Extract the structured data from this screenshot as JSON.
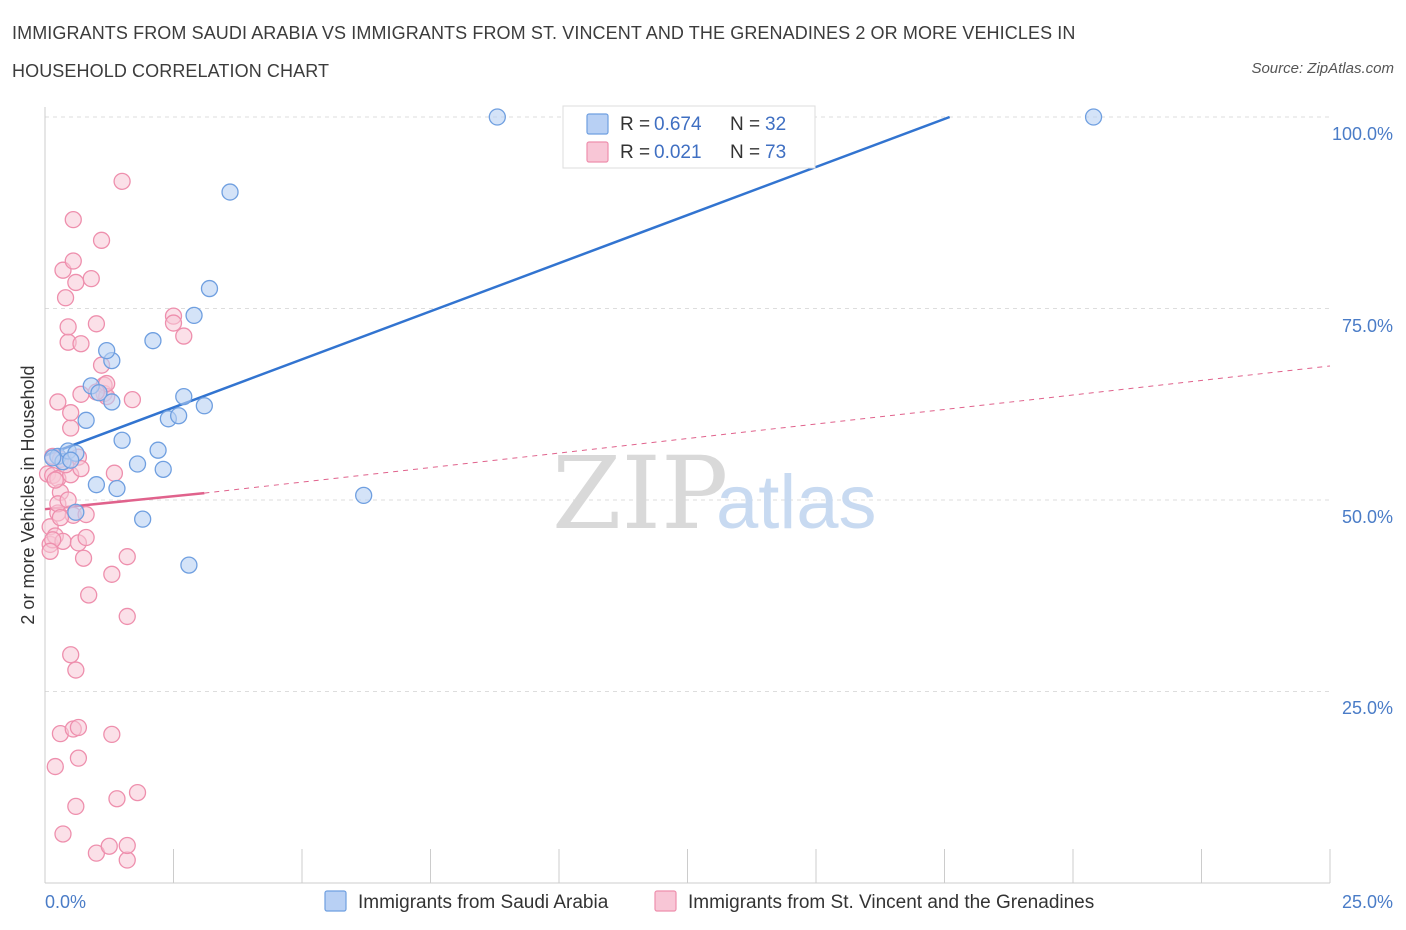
{
  "header": {
    "title": "IMMIGRANTS FROM SAUDI ARABIA VS IMMIGRANTS FROM ST. VINCENT AND THE GRENADINES 2 OR MORE VEHICLES IN HOUSEHOLD CORRELATION CHART",
    "source": "Source: ZipAtlas.com"
  },
  "watermark": {
    "zip": "ZIP",
    "atlas": "atlas"
  },
  "colors": {
    "blue_fill": "#b8d0f4",
    "blue_stroke": "#6f9fe0",
    "blue_line": "#3274d0",
    "pink_fill": "#f8c6d6",
    "pink_stroke": "#ee8fad",
    "pink_line": "#e0628c",
    "grid": "#dddddd",
    "tick_text": "#4a7cc7"
  },
  "chart_data": {
    "type": "scatter",
    "title": "IMMIGRANTS FROM SAUDI ARABIA VS IMMIGRANTS FROM ST. VINCENT AND THE GRENADINES 2 OR MORE VEHICLES IN HOUSEHOLD CORRELATION CHART",
    "xlabel": "",
    "ylabel": "2 or more Vehicles in Household",
    "xlim": [
      0,
      25
    ],
    "ylim": [
      0,
      100
    ],
    "x_tick_labels": [
      "0.0%",
      "25.0%"
    ],
    "y_tick_labels": [
      "100.0%",
      "75.0%",
      "50.0%",
      "25.0%"
    ],
    "y_ticks": [
      100,
      75,
      50,
      25
    ],
    "grid": true,
    "legend_position": "top-center",
    "legend": [
      {
        "name": "Immigrants from Saudi Arabia",
        "r_label": "R =",
        "r_value": "0.674",
        "n_label": "N =",
        "n_value": "32"
      },
      {
        "name": "Immigrants from St. Vincent and the Grenadines",
        "r_label": "R =",
        "r_value": "0.021",
        "n_label": "N =",
        "n_value": "73"
      }
    ],
    "series": [
      {
        "name": "Immigrants from Saudi Arabia",
        "color": "blue",
        "trend": {
          "x": [
            0,
            17.6
          ],
          "y": [
            55.8,
            100
          ],
          "style": "solid"
        },
        "points": [
          {
            "x": 0.25,
            "y": 55.7
          },
          {
            "x": 0.35,
            "y": 55.0
          },
          {
            "x": 0.45,
            "y": 56.4
          },
          {
            "x": 0.6,
            "y": 56.1
          },
          {
            "x": 0.6,
            "y": 48.4
          },
          {
            "x": 0.8,
            "y": 60.4
          },
          {
            "x": 0.9,
            "y": 64.9
          },
          {
            "x": 1.0,
            "y": 52.0
          },
          {
            "x": 1.05,
            "y": 64.0
          },
          {
            "x": 1.3,
            "y": 68.2
          },
          {
            "x": 1.3,
            "y": 62.8
          },
          {
            "x": 1.5,
            "y": 57.8
          },
          {
            "x": 1.4,
            "y": 51.5
          },
          {
            "x": 1.2,
            "y": 69.5
          },
          {
            "x": 1.8,
            "y": 54.7
          },
          {
            "x": 1.9,
            "y": 47.5
          },
          {
            "x": 2.1,
            "y": 70.8
          },
          {
            "x": 2.2,
            "y": 56.5
          },
          {
            "x": 2.3,
            "y": 54.0
          },
          {
            "x": 2.4,
            "y": 60.6
          },
          {
            "x": 2.6,
            "y": 61.0
          },
          {
            "x": 2.7,
            "y": 63.5
          },
          {
            "x": 2.9,
            "y": 74.1
          },
          {
            "x": 3.1,
            "y": 62.3
          },
          {
            "x": 3.2,
            "y": 77.6
          },
          {
            "x": 3.6,
            "y": 90.2
          },
          {
            "x": 2.8,
            "y": 41.5
          },
          {
            "x": 6.2,
            "y": 50.6
          },
          {
            "x": 8.8,
            "y": 100.0
          },
          {
            "x": 20.4,
            "y": 100.0
          },
          {
            "x": 0.15,
            "y": 55.5
          },
          {
            "x": 0.5,
            "y": 55.2
          }
        ]
      },
      {
        "name": "Immigrants from St. Vincent and the Grenadines",
        "color": "pink",
        "trend": {
          "x": [
            0,
            3.1
          ],
          "y": [
            48.8,
            50.9
          ],
          "style": "solid",
          "extension": {
            "x": [
              3.1,
              25
            ],
            "y": [
              50.9,
              67.5
            ],
            "style": "dashed"
          }
        },
        "points": [
          {
            "x": 0.05,
            "y": 53.4
          },
          {
            "x": 0.1,
            "y": 46.5
          },
          {
            "x": 0.1,
            "y": 44.2
          },
          {
            "x": 0.15,
            "y": 55.7
          },
          {
            "x": 0.15,
            "y": 53.2
          },
          {
            "x": 0.2,
            "y": 45.3
          },
          {
            "x": 0.2,
            "y": 15.2
          },
          {
            "x": 0.25,
            "y": 62.8
          },
          {
            "x": 0.25,
            "y": 52.8
          },
          {
            "x": 0.25,
            "y": 48.3
          },
          {
            "x": 0.3,
            "y": 55.3
          },
          {
            "x": 0.3,
            "y": 51.0
          },
          {
            "x": 0.3,
            "y": 19.5
          },
          {
            "x": 0.35,
            "y": 44.6
          },
          {
            "x": 0.35,
            "y": 6.4
          },
          {
            "x": 0.35,
            "y": 80.0
          },
          {
            "x": 0.4,
            "y": 76.4
          },
          {
            "x": 0.45,
            "y": 70.6
          },
          {
            "x": 0.45,
            "y": 72.6
          },
          {
            "x": 0.5,
            "y": 59.4
          },
          {
            "x": 0.5,
            "y": 53.3
          },
          {
            "x": 0.5,
            "y": 61.4
          },
          {
            "x": 0.5,
            "y": 29.8
          },
          {
            "x": 0.55,
            "y": 81.2
          },
          {
            "x": 0.55,
            "y": 48.0
          },
          {
            "x": 0.55,
            "y": 20.1
          },
          {
            "x": 0.55,
            "y": 86.6
          },
          {
            "x": 0.6,
            "y": 78.4
          },
          {
            "x": 0.6,
            "y": 27.8
          },
          {
            "x": 0.6,
            "y": 10.0
          },
          {
            "x": 0.65,
            "y": 20.3
          },
          {
            "x": 0.65,
            "y": 16.3
          },
          {
            "x": 0.65,
            "y": 44.4
          },
          {
            "x": 0.65,
            "y": 55.6
          },
          {
            "x": 0.7,
            "y": 70.4
          },
          {
            "x": 0.7,
            "y": 63.8
          },
          {
            "x": 0.7,
            "y": 54.1
          },
          {
            "x": 0.75,
            "y": 42.4
          },
          {
            "x": 0.8,
            "y": 48.1
          },
          {
            "x": 0.8,
            "y": 45.1
          },
          {
            "x": 0.85,
            "y": 37.6
          },
          {
            "x": 0.9,
            "y": 78.9
          },
          {
            "x": 1.0,
            "y": 73.0
          },
          {
            "x": 1.0,
            "y": 3.9
          },
          {
            "x": 1.1,
            "y": 67.6
          },
          {
            "x": 1.1,
            "y": 83.9
          },
          {
            "x": 1.15,
            "y": 63.9
          },
          {
            "x": 1.15,
            "y": 65.0
          },
          {
            "x": 1.2,
            "y": 63.5
          },
          {
            "x": 1.2,
            "y": 65.2
          },
          {
            "x": 1.25,
            "y": 4.8
          },
          {
            "x": 1.3,
            "y": 19.4
          },
          {
            "x": 1.3,
            "y": 40.3
          },
          {
            "x": 1.35,
            "y": 53.5
          },
          {
            "x": 1.4,
            "y": 11.0
          },
          {
            "x": 1.5,
            "y": 91.6
          },
          {
            "x": 1.6,
            "y": 42.6
          },
          {
            "x": 1.6,
            "y": 34.8
          },
          {
            "x": 1.6,
            "y": 3.0
          },
          {
            "x": 1.7,
            "y": 63.1
          },
          {
            "x": 1.8,
            "y": 11.8
          },
          {
            "x": 2.5,
            "y": 74.0
          },
          {
            "x": 2.5,
            "y": 73.1
          },
          {
            "x": 2.7,
            "y": 71.4
          },
          {
            "x": 1.6,
            "y": 4.9
          },
          {
            "x": 0.15,
            "y": 44.8
          },
          {
            "x": 0.2,
            "y": 52.6
          },
          {
            "x": 0.25,
            "y": 49.5
          },
          {
            "x": 0.3,
            "y": 47.7
          },
          {
            "x": 0.1,
            "y": 43.3
          },
          {
            "x": 0.4,
            "y": 54.6
          },
          {
            "x": 0.45,
            "y": 50.0
          },
          {
            "x": 1.0,
            "y": 64.1
          }
        ]
      }
    ]
  }
}
